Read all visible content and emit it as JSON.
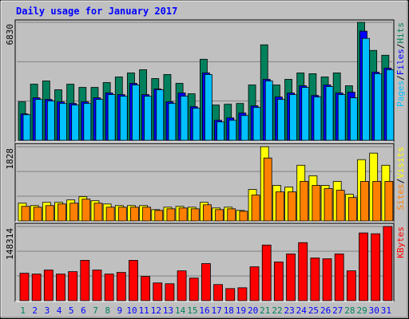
{
  "title": "Daily usage for January 2017",
  "legend_separator": "/",
  "chart_data": [
    {
      "type": "bar",
      "ylim": [
        0,
        6830
      ],
      "yticks": [
        6830
      ],
      "series": [
        {
          "name": "Hits",
          "color": "#00805c",
          "values": [
            2230,
            3252,
            3438,
            2927,
            3252,
            3066,
            3066,
            3345,
            3670,
            3903,
            4089,
            3577,
            3810,
            3299,
            2695,
            4693,
            2044,
            2091,
            2137,
            3206,
            5529,
            3206,
            3531,
            3903,
            3856,
            3670,
            3903,
            3159,
            6830,
            5204,
            4925
          ]
        },
        {
          "name": "Files",
          "color": "#0000ff",
          "values": [
            1533,
            2462,
            2369,
            2230,
            2137,
            2230,
            2462,
            2741,
            2648,
            3299,
            2648,
            2973,
            2230,
            2741,
            1951,
            3903,
            1162,
            1301,
            1580,
            1997,
            3531,
            2509,
            2741,
            3159,
            2601,
            3206,
            2741,
            2787,
            6318,
            3949,
            4182
          ]
        },
        {
          "name": "Pages",
          "color": "#00c0ff",
          "values": [
            1487,
            2369,
            2277,
            2137,
            2044,
            2137,
            2369,
            2648,
            2555,
            3206,
            2555,
            2927,
            2137,
            2555,
            1858,
            3810,
            1069,
            1162,
            1440,
            1905,
            3438,
            2369,
            2648,
            3066,
            2509,
            3113,
            2648,
            2462,
            5900,
            3856,
            4088
          ]
        }
      ]
    },
    {
      "type": "bar",
      "ylim": [
        0,
        1828
      ],
      "yticks": [
        1828
      ],
      "series": [
        {
          "name": "Visits",
          "color": "#ffff00",
          "values": [
            437,
            378,
            457,
            457,
            517,
            596,
            497,
            417,
            378,
            378,
            378,
            278,
            338,
            358,
            338,
            457,
            318,
            338,
            258,
            775,
            1828,
            874,
            834,
            1371,
            1113,
            874,
            974,
            656,
            1510,
            1669,
            1371
          ]
        },
        {
          "name": "Sites",
          "color": "#ff8000",
          "values": [
            358,
            338,
            378,
            417,
            437,
            536,
            437,
            338,
            338,
            338,
            338,
            258,
            298,
            318,
            298,
            397,
            278,
            298,
            238,
            636,
            1550,
            715,
            715,
            974,
            874,
            795,
            755,
            576,
            974,
            974,
            974
          ]
        }
      ]
    },
    {
      "type": "bar",
      "ylim": [
        0,
        148314
      ],
      "yticks": [
        148314
      ],
      "categories": [
        "1",
        "2",
        "3",
        "4",
        "5",
        "6",
        "7",
        "8",
        "9",
        "10",
        "11",
        "12",
        "13",
        "14",
        "15",
        "16",
        "17",
        "18",
        "19",
        "20",
        "21",
        "22",
        "23",
        "24",
        "25",
        "26",
        "27",
        "28",
        "29",
        "30",
        "31"
      ],
      "category_colors": [
        "#00805c",
        "#0000ff",
        "#0000ff",
        "#0000ff",
        "#0000ff",
        "#0000ff",
        "#00805c",
        "#00805c",
        "#0000ff",
        "#0000ff",
        "#0000ff",
        "#0000ff",
        "#0000ff",
        "#00805c",
        "#00805c",
        "#0000ff",
        "#0000ff",
        "#0000ff",
        "#0000ff",
        "#0000ff",
        "#00805c",
        "#00805c",
        "#0000ff",
        "#0000ff",
        "#0000ff",
        "#0000ff",
        "#0000ff",
        "#00805c",
        "#00805c",
        "#0000ff",
        "#0000ff"
      ],
      "series": [
        {
          "name": "KBytes",
          "color": "#ff0000",
          "values": [
            54808,
            53196,
            61256,
            53196,
            58032,
            80600,
            61256,
            53196,
            56420,
            80600,
            48360,
            35464,
            33852,
            59644,
            45136,
            74152,
            32240,
            24180,
            25792,
            67704,
            111228,
            77376,
            93496,
            116064,
            85436,
            83824,
            93496,
            59644,
            135408,
            133796,
            148314
          ]
        }
      ]
    }
  ]
}
